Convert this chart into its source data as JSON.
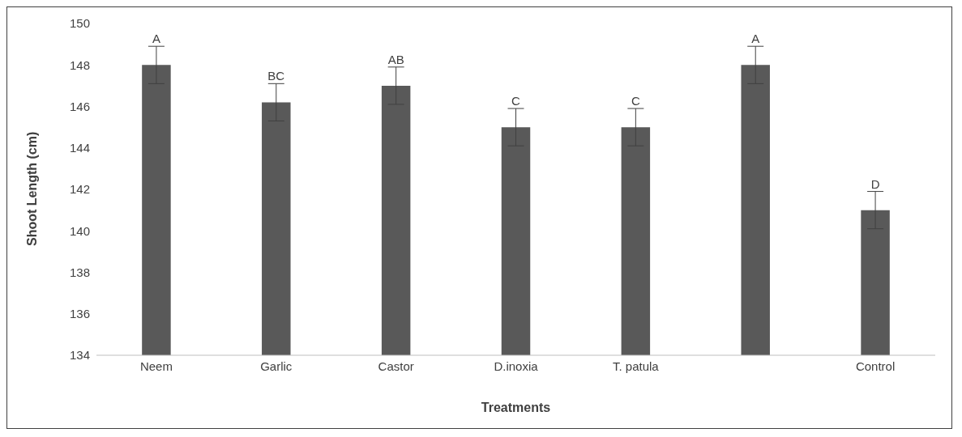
{
  "chart_data": {
    "type": "bar",
    "xlabel": "Treatments",
    "ylabel": "Shoot Length (cm)",
    "categories": [
      "Neem",
      "Garlic",
      "Castor",
      "D.inoxia",
      "T. patula",
      null,
      "Control"
    ],
    "values": [
      148,
      146.2,
      147,
      145,
      145,
      148,
      141
    ],
    "errors": [
      0.9,
      0.9,
      0.9,
      0.9,
      0.9,
      0.9,
      0.9
    ],
    "value_labels": [
      "A",
      "BC",
      "AB",
      "C",
      "C",
      "A",
      "D"
    ],
    "color": "#595959",
    "ylim": [
      134,
      150
    ],
    "yticks": [
      134,
      136,
      138,
      140,
      142,
      144,
      146,
      148,
      150
    ],
    "grid": false
  }
}
